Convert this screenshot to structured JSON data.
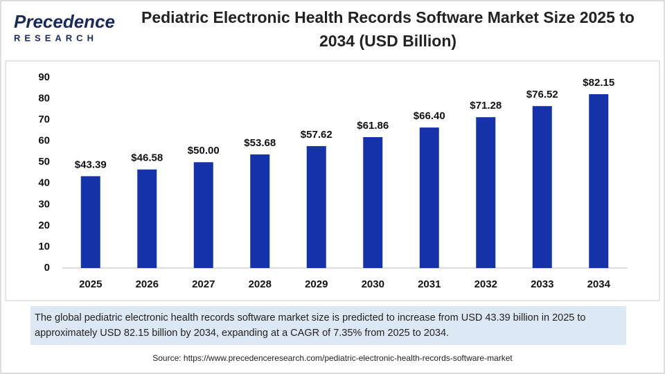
{
  "logo": {
    "name": "Precedence",
    "tagline": "RESEARCH"
  },
  "chart_data": {
    "type": "bar",
    "title": "Pediatric Electronic Health Records Software Market Size 2025 to 2034 (USD Billion)",
    "categories": [
      "2025",
      "2026",
      "2027",
      "2028",
      "2029",
      "2030",
      "2031",
      "2032",
      "2033",
      "2034"
    ],
    "values": [
      43.39,
      46.58,
      50.0,
      53.68,
      57.62,
      61.86,
      66.4,
      71.28,
      76.52,
      82.15
    ],
    "value_labels": [
      "$43.39",
      "$46.58",
      "$50.00",
      "$53.68",
      "$57.62",
      "$61.86",
      "$66.40",
      "$71.28",
      "$76.52",
      "$82.15"
    ],
    "color": "#1632a9",
    "ylim": [
      0,
      90
    ],
    "yticks": [
      0,
      10,
      20,
      30,
      40,
      50,
      60,
      70,
      80,
      90
    ],
    "grid": false
  },
  "note": "The global pediatric electronic health records software market size is predicted to increase from USD 43.39 billion in 2025 to approximately USD 82.15 billion by 2034, expanding at a CAGR of 7.35% from 2025 to 2034.",
  "source": "Source: https://www.precedenceresearch.com/pediatric-electronic-health-records-software-market"
}
